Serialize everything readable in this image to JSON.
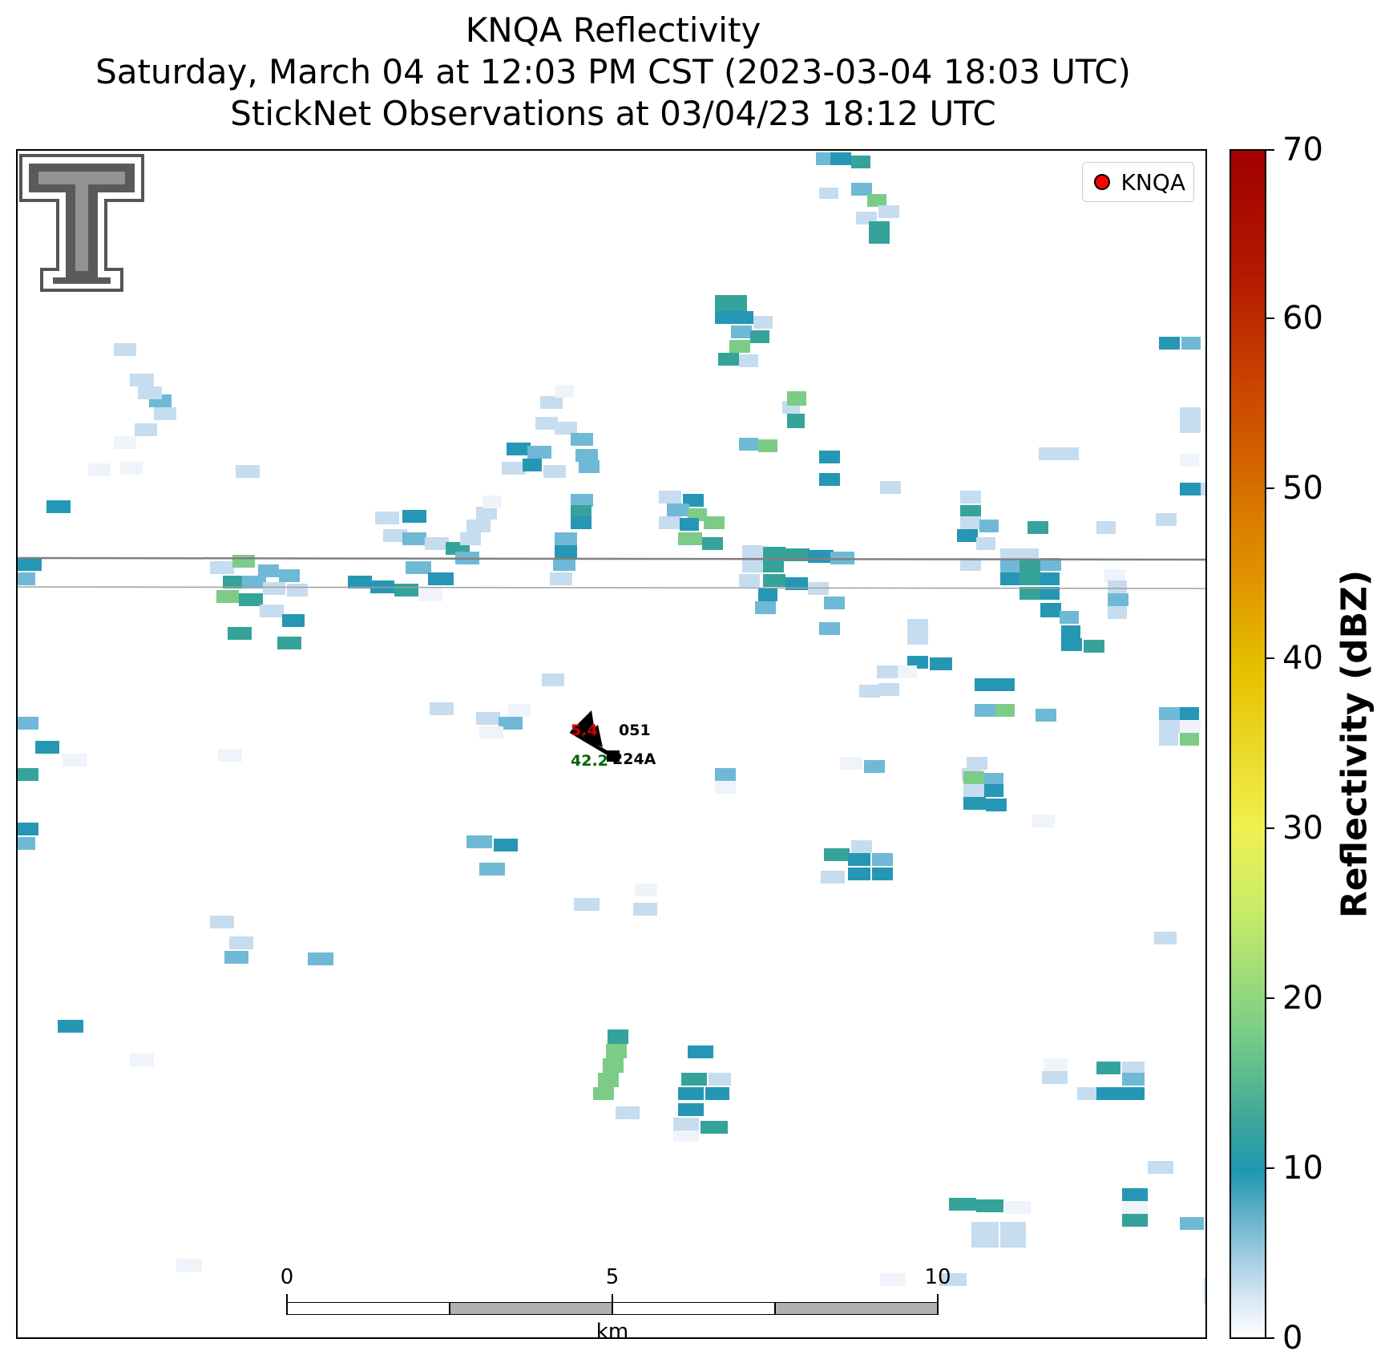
{
  "title": {
    "line1": "KNQA Reflectivity",
    "line2": "Saturday, March 04 at 12:03 PM CST (2023-03-04 18:03 UTC)",
    "line3": "StickNet Observations at 03/04/23 18:12 UTC"
  },
  "legend": {
    "label": "KNQA",
    "marker_color": "#ff0000"
  },
  "logo": {
    "name": "texas-tech-double-t-logo"
  },
  "station": {
    "id_top": "051",
    "id_bottom": "224A",
    "value_green": "42.2",
    "value_red": "5.4",
    "green_color": "#006400",
    "red_color": "#cc0000"
  },
  "scale_bar": {
    "ticks": [
      "0",
      "5",
      "10"
    ],
    "unit": "km"
  },
  "colorbar": {
    "label": "Reflectivity (dBZ)",
    "ticks": [
      "0",
      "10",
      "20",
      "30",
      "40",
      "50",
      "60",
      "70"
    ],
    "range": [
      0,
      70
    ]
  },
  "colors": {
    "very_light": "#eef4fa",
    "light_blue": "#c6dcef",
    "blue": "#6fb9d7",
    "teal_blue": "#2597b5",
    "teal": "#36a39a",
    "green": "#7ccc88"
  }
}
